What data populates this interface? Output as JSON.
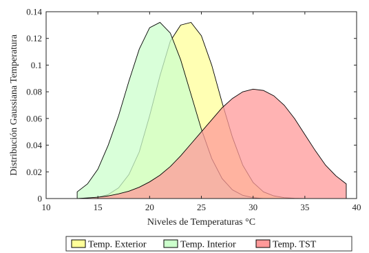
{
  "chart_data": {
    "type": "area",
    "xlabel": "Niveles de Temperaturas °C",
    "ylabel": "Distribución Gaussiana Temperatura",
    "xlim": [
      10,
      40
    ],
    "ylim": [
      0,
      0.14
    ],
    "xticks": [
      "10",
      "15",
      "20",
      "25",
      "30",
      "35",
      "40"
    ],
    "yticks": [
      "0",
      "0.02",
      "0.04",
      "0.06",
      "0.08",
      "0.1",
      "0.12",
      "0.14"
    ],
    "grid": false,
    "legend_position": "bottom",
    "series": [
      {
        "name": "Temp. Exterior",
        "color": "#ffff99",
        "x": [
          13,
          14,
          15,
          16,
          17,
          18,
          19,
          20,
          21,
          22,
          23,
          24,
          25,
          26,
          27,
          28,
          29,
          30,
          31,
          32,
          33,
          34,
          35
        ],
        "y": [
          0.0,
          0.0003,
          0.001,
          0.003,
          0.008,
          0.018,
          0.035,
          0.062,
          0.092,
          0.118,
          0.13,
          0.132,
          0.122,
          0.1,
          0.072,
          0.046,
          0.025,
          0.012,
          0.005,
          0.002,
          0.0007,
          0.0002,
          0.0
        ]
      },
      {
        "name": "Temp. Interior",
        "color": "#ccffcc",
        "x": [
          13,
          14,
          15,
          16,
          17,
          18,
          19,
          20,
          21,
          22,
          23,
          24,
          25,
          26,
          27,
          28,
          29,
          30,
          31
        ],
        "y": [
          0.005,
          0.011,
          0.022,
          0.04,
          0.062,
          0.088,
          0.112,
          0.128,
          0.132,
          0.124,
          0.104,
          0.078,
          0.052,
          0.03,
          0.015,
          0.0065,
          0.0024,
          0.0007,
          0.0
        ]
      },
      {
        "name": "Temp. TST",
        "color": "#ff9999",
        "x": [
          13,
          14,
          15,
          16,
          17,
          18,
          19,
          20,
          21,
          22,
          23,
          24,
          25,
          26,
          27,
          28,
          29,
          30,
          31,
          32,
          33,
          34,
          35,
          36,
          37,
          38,
          39
        ],
        "y": [
          0.0,
          0.0005,
          0.001,
          0.002,
          0.0035,
          0.0055,
          0.0085,
          0.0125,
          0.0175,
          0.024,
          0.032,
          0.041,
          0.05,
          0.059,
          0.068,
          0.075,
          0.08,
          0.082,
          0.081,
          0.077,
          0.07,
          0.06,
          0.048,
          0.036,
          0.025,
          0.017,
          0.011
        ]
      }
    ]
  }
}
